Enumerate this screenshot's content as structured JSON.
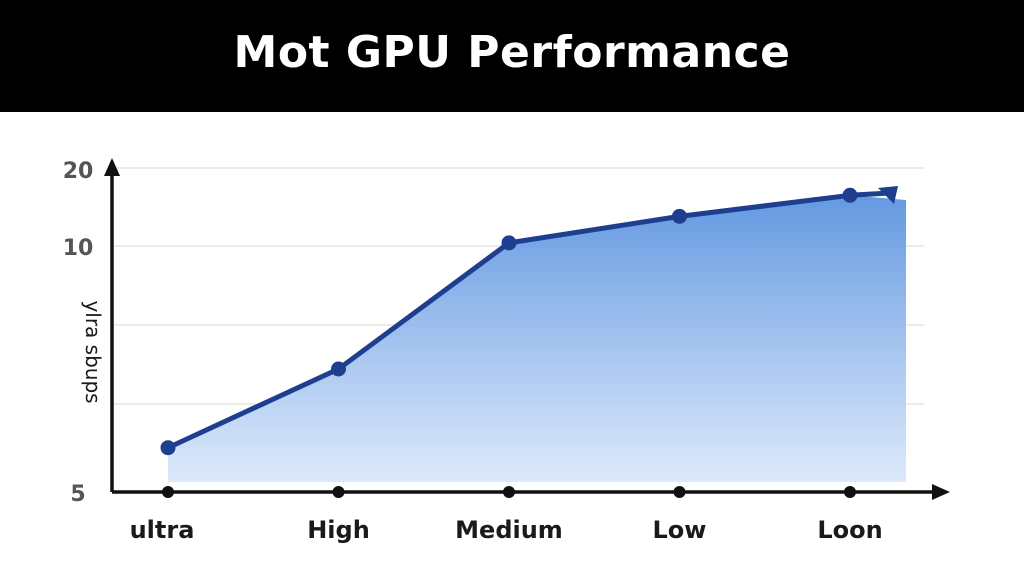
{
  "header": {
    "title": "Mot GPU Performance"
  },
  "colors": {
    "header_bg": "#000000",
    "line": "#1e3f8f",
    "area_top": "#5b93e0",
    "area_bottom": "#d9e7fa",
    "axis": "#111111",
    "grid": "#e6e6e6"
  },
  "chart_data": {
    "type": "line",
    "title": "Mot GPU Performance",
    "xlabel": "",
    "ylabel": "ylra sbups",
    "y_ticks": [
      "20",
      "10",
      "5"
    ],
    "categories": [
      "ultra",
      "High",
      "Medium",
      "Low",
      "Loon"
    ],
    "series": [
      {
        "values": [
          5.9,
          7.5,
          10.4,
          13.8,
          16.5
        ]
      }
    ],
    "ylim": [
      5,
      20
    ],
    "grid": true,
    "area_fill": true,
    "trend_arrow": true
  }
}
